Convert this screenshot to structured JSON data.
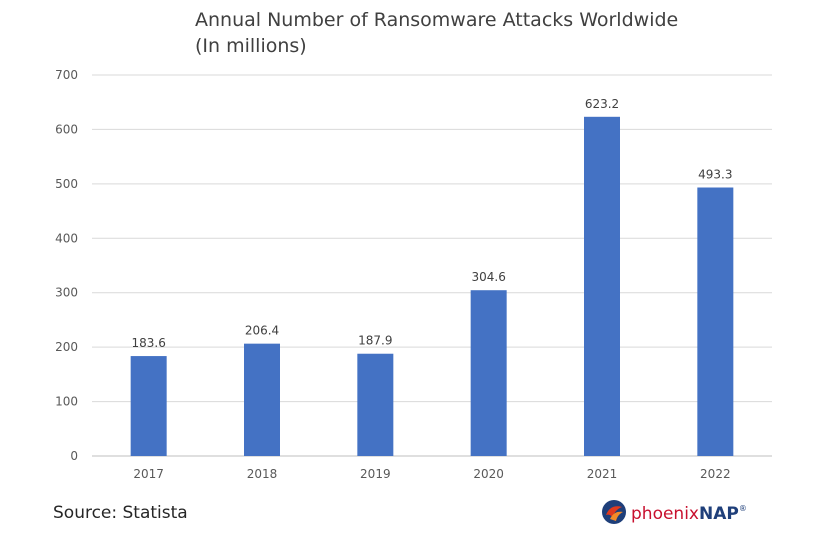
{
  "chart_data": {
    "type": "bar",
    "title": "Annual Number of Ransomware Attacks Worldwide",
    "subtitle": "(In millions)",
    "categories": [
      "2017",
      "2018",
      "2019",
      "2020",
      "2021",
      "2022"
    ],
    "values": [
      183.6,
      206.4,
      187.9,
      304.6,
      623.2,
      493.3
    ],
    "value_labels": [
      "183.6",
      "206.4",
      "187.9",
      "304.6",
      "623.2",
      "493.3"
    ],
    "ylim": [
      0,
      700
    ],
    "yticks": [
      "0",
      "100",
      "200",
      "300",
      "400",
      "500",
      "600",
      "700"
    ],
    "grid": true,
    "bar_color": "#4472c4"
  },
  "source": "Source: Statista",
  "logo": {
    "name": "phoenixNAP",
    "text_phoenix": "phoenix",
    "text_nap": "NAP",
    "icon": "phoenix-globe-icon"
  }
}
